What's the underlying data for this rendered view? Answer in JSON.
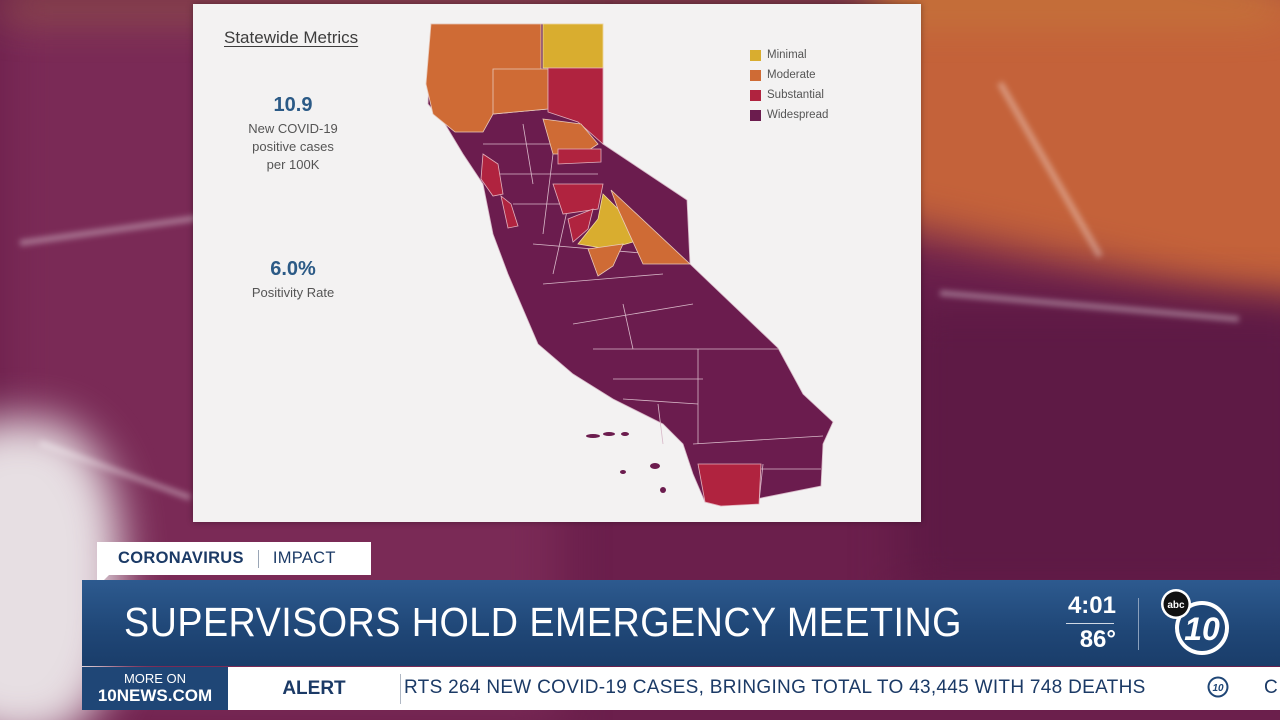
{
  "map_card": {
    "title": "Statewide Metrics",
    "metrics": [
      {
        "value": "10.9",
        "label_lines": [
          "New COVID-19",
          "positive cases",
          "per 100K"
        ]
      },
      {
        "value": "6.0%",
        "label_lines": [
          "Positivity Rate"
        ]
      }
    ],
    "legend": [
      {
        "label": "Minimal",
        "color": "#d9ad2f"
      },
      {
        "label": "Moderate",
        "color": "#cf6b35"
      },
      {
        "label": "Substantial",
        "color": "#b0233f"
      },
      {
        "label": "Widespread",
        "color": "#6b1c4e"
      }
    ]
  },
  "lower_third": {
    "category": "CORONAVIRUS",
    "subcategory": "IMPACT",
    "headline": "SUPERVISORS HOLD EMERGENCY MEETING",
    "time": "4:01",
    "temperature": "86°",
    "logo_icon": "abc-10-logo-icon"
  },
  "ticker": {
    "more_on": "MORE ON",
    "site": "10NEWS.COM",
    "alert_label": "ALERT",
    "text": "RTS 264 NEW COVID-19 CASES, BRINGING TOTAL TO 43,445 WITH 748 DEATHS",
    "next_text": "C"
  },
  "colors": {
    "accent_blue": "#1f4676",
    "widespread": "#6b1c4e",
    "substantial": "#b0233f",
    "moderate": "#cf6b35",
    "minimal": "#d9ad2f"
  }
}
